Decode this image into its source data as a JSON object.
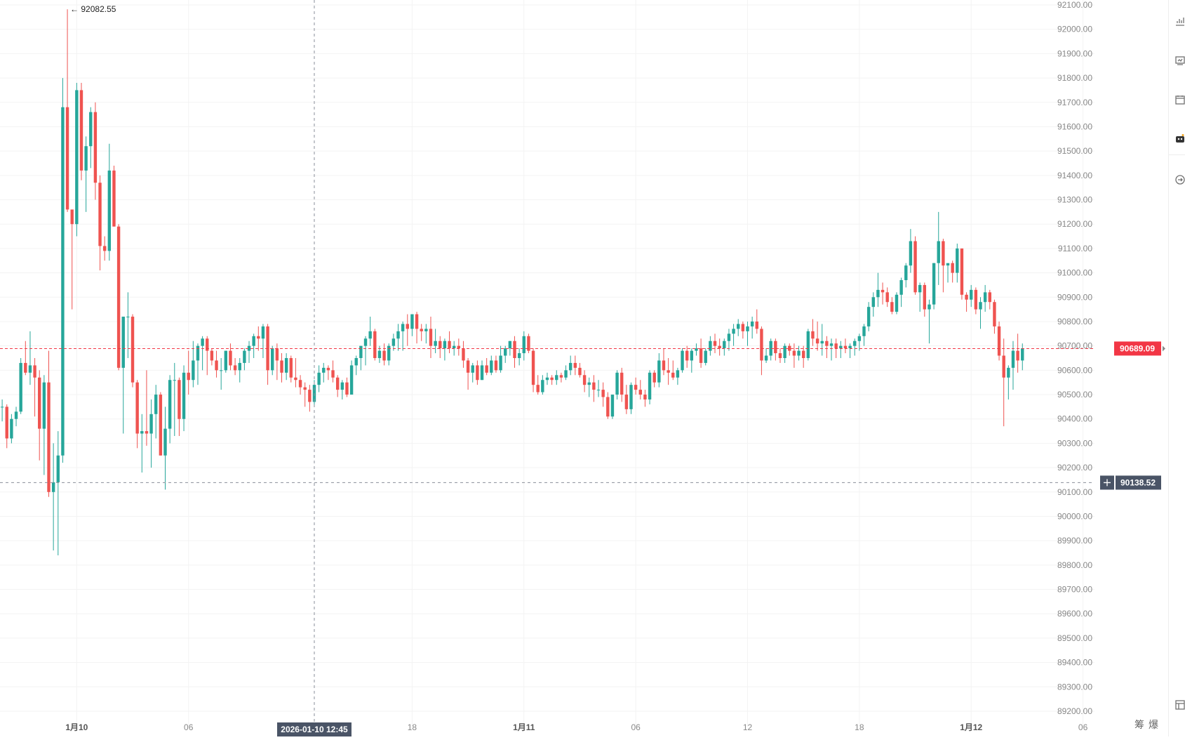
{
  "chart_data": {
    "type": "candlestick",
    "title": "",
    "ylim": [
      89150,
      92150
    ],
    "y_ticks": [
      "92100.00",
      "92000.00",
      "91900.00",
      "91800.00",
      "91700.00",
      "91600.00",
      "91500.00",
      "91400.00",
      "91300.00",
      "91200.00",
      "91100.00",
      "91000.00",
      "90900.00",
      "90800.00",
      "90700.00",
      "90600.00",
      "90500.00",
      "90400.00",
      "90300.00",
      "90200.00",
      "90100.00",
      "90000.00",
      "89900.00",
      "89800.00",
      "89700.00",
      "89600.00",
      "89500.00",
      "89400.00",
      "89300.00",
      "89200.00"
    ],
    "x_ticks": [
      {
        "label": "1月10",
        "slot": 16,
        "bold": true
      },
      {
        "label": "06",
        "slot": 40,
        "bold": false
      },
      {
        "label": "18",
        "slot": 88,
        "bold": false
      },
      {
        "label": "1月11",
        "slot": 112,
        "bold": true
      },
      {
        "label": "06",
        "slot": 136,
        "bold": false
      },
      {
        "label": "12",
        "slot": 160,
        "bold": false
      },
      {
        "label": "18",
        "slot": 184,
        "bold": false
      },
      {
        "label": "1月12",
        "slot": 208,
        "bold": true
      },
      {
        "label": "06",
        "slot": 232,
        "bold": false
      }
    ],
    "crosshair": {
      "slot": 67,
      "time_label": "2026-01-10 12:45",
      "price": 90138.52,
      "price_label": "90138.52"
    },
    "last_price": {
      "value": 90689.09,
      "label": "90689.09"
    },
    "max_marker": {
      "slot": 14,
      "value": 92082.55,
      "label": "← 92082.55"
    },
    "colors": {
      "up": "#26a69a",
      "down": "#ef5350",
      "last_price_bg": "#f23645",
      "crosshair_label_bg": "#4a5466",
      "grid": "#f3f3f3"
    },
    "candles": [
      [
        90450,
        90480,
        90390,
        90450
      ],
      [
        90450,
        90460,
        90280,
        90320
      ],
      [
        90320,
        90420,
        90300,
        90400
      ],
      [
        90400,
        90450,
        90370,
        90430
      ],
      [
        90430,
        90650,
        90420,
        90630
      ],
      [
        90630,
        90720,
        90580,
        90590
      ],
      [
        90590,
        90760,
        90540,
        90620
      ],
      [
        90620,
        90650,
        90410,
        90570
      ],
      [
        90570,
        90600,
        90230,
        90360
      ],
      [
        90360,
        90580,
        90170,
        90550
      ],
      [
        90550,
        90680,
        90080,
        90100
      ],
      [
        90100,
        90300,
        89860,
        90140
      ],
      [
        90140,
        90350,
        89840,
        90250
      ],
      [
        90250,
        91800,
        90220,
        91680
      ],
      [
        91680,
        92082,
        91250,
        91260
      ],
      [
        91260,
        91240,
        90850,
        91200
      ],
      [
        91200,
        91780,
        91150,
        91750
      ],
      [
        91750,
        91780,
        91380,
        91420
      ],
      [
        91420,
        91560,
        91250,
        91520
      ],
      [
        91520,
        91680,
        91430,
        91660
      ],
      [
        91660,
        91700,
        91300,
        91370
      ],
      [
        91370,
        91400,
        91010,
        91110
      ],
      [
        91110,
        91150,
        91050,
        91090
      ],
      [
        91090,
        91530,
        91050,
        91420
      ],
      [
        91420,
        91440,
        91190,
        91190
      ],
      [
        91190,
        91200,
        90600,
        90610
      ],
      [
        90610,
        90820,
        90340,
        90820
      ],
      [
        90820,
        90920,
        90650,
        90820
      ],
      [
        90820,
        90830,
        90530,
        90550
      ],
      [
        90550,
        90560,
        90280,
        90340
      ],
      [
        90340,
        90420,
        90180,
        90350
      ],
      [
        90350,
        90600,
        90290,
        90340
      ],
      [
        90340,
        90480,
        90200,
        90420
      ],
      [
        90420,
        90540,
        90320,
        90500
      ],
      [
        90500,
        90510,
        90250,
        90250
      ],
      [
        90250,
        90450,
        90110,
        90360
      ],
      [
        90360,
        90580,
        90300,
        90560
      ],
      [
        90560,
        90630,
        90330,
        90560
      ],
      [
        90560,
        90570,
        90330,
        90400
      ],
      [
        90400,
        90620,
        90350,
        90590
      ],
      [
        90590,
        90680,
        90500,
        90560
      ],
      [
        90560,
        90720,
        90530,
        90640
      ],
      [
        90640,
        90710,
        90540,
        90700
      ],
      [
        90700,
        90740,
        90600,
        90730
      ],
      [
        90730,
        90740,
        90580,
        90680
      ],
      [
        90680,
        90690,
        90620,
        90640
      ],
      [
        90640,
        90680,
        90570,
        90600
      ],
      [
        90600,
        90650,
        90520,
        90600
      ],
      [
        90600,
        90680,
        90590,
        90680
      ],
      [
        90680,
        90710,
        90600,
        90620
      ],
      [
        90620,
        90650,
        90580,
        90600
      ],
      [
        90600,
        90650,
        90550,
        90630
      ],
      [
        90630,
        90690,
        90600,
        90680
      ],
      [
        90680,
        90720,
        90630,
        90700
      ],
      [
        90700,
        90750,
        90650,
        90740
      ],
      [
        90740,
        90780,
        90680,
        90730
      ],
      [
        90730,
        90790,
        90650,
        90780
      ],
      [
        90780,
        90790,
        90540,
        90600
      ],
      [
        90600,
        90700,
        90580,
        90690
      ],
      [
        90690,
        90710,
        90560,
        90640
      ],
      [
        90640,
        90670,
        90550,
        90590
      ],
      [
        90590,
        90670,
        90560,
        90650
      ],
      [
        90650,
        90660,
        90550,
        90570
      ],
      [
        90570,
        90650,
        90530,
        90560
      ],
      [
        90560,
        90580,
        90500,
        90530
      ],
      [
        90530,
        90550,
        90450,
        90520
      ],
      [
        90520,
        90540,
        90430,
        90470
      ],
      [
        90470,
        90560,
        90450,
        90540
      ],
      [
        90540,
        90620,
        90510,
        90590
      ],
      [
        90590,
        90630,
        90550,
        90610
      ],
      [
        90610,
        90620,
        90560,
        90600
      ],
      [
        90600,
        90640,
        90550,
        90570
      ],
      [
        90570,
        90580,
        90490,
        90520
      ],
      [
        90520,
        90560,
        90480,
        90550
      ],
      [
        90550,
        90570,
        90490,
        90500
      ],
      [
        90500,
        90640,
        90500,
        90620
      ],
      [
        90620,
        90660,
        90580,
        90650
      ],
      [
        90650,
        90700,
        90600,
        90700
      ],
      [
        90700,
        90740,
        90620,
        90730
      ],
      [
        90730,
        90820,
        90700,
        90760
      ],
      [
        90760,
        90770,
        90640,
        90650
      ],
      [
        90650,
        90700,
        90630,
        90680
      ],
      [
        90680,
        90710,
        90620,
        90640
      ],
      [
        90640,
        90710,
        90620,
        90700
      ],
      [
        90700,
        90750,
        90680,
        90730
      ],
      [
        90730,
        90790,
        90680,
        90760
      ],
      [
        90760,
        90800,
        90680,
        90790
      ],
      [
        90790,
        90830,
        90700,
        90770
      ],
      [
        90770,
        90820,
        90740,
        90830
      ],
      [
        90830,
        90840,
        90710,
        90770
      ],
      [
        90770,
        90790,
        90720,
        90760
      ],
      [
        90760,
        90790,
        90710,
        90770
      ],
      [
        90770,
        90820,
        90650,
        90700
      ],
      [
        90700,
        90770,
        90670,
        90720
      ],
      [
        90720,
        90740,
        90650,
        90690
      ],
      [
        90690,
        90730,
        90640,
        90720
      ],
      [
        90720,
        90760,
        90670,
        90690
      ],
      [
        90690,
        90720,
        90660,
        90700
      ],
      [
        90700,
        90730,
        90660,
        90690
      ],
      [
        90690,
        90720,
        90610,
        90640
      ],
      [
        90640,
        90650,
        90520,
        90590
      ],
      [
        90590,
        90630,
        90550,
        90620
      ],
      [
        90620,
        90640,
        90540,
        90560
      ],
      [
        90560,
        90640,
        90560,
        90620
      ],
      [
        90620,
        90650,
        90580,
        90590
      ],
      [
        90590,
        90660,
        90580,
        90640
      ],
      [
        90640,
        90660,
        90590,
        90600
      ],
      [
        90600,
        90700,
        90590,
        90660
      ],
      [
        90660,
        90700,
        90630,
        90690
      ],
      [
        90690,
        90720,
        90660,
        90720
      ],
      [
        90720,
        90740,
        90610,
        90650
      ],
      [
        90650,
        90690,
        90620,
        90670
      ],
      [
        90670,
        90760,
        90640,
        90740
      ],
      [
        90740,
        90750,
        90670,
        90680
      ],
      [
        90680,
        90690,
        90510,
        90540
      ],
      [
        90540,
        90580,
        90500,
        90510
      ],
      [
        90510,
        90580,
        90500,
        90560
      ],
      [
        90560,
        90590,
        90540,
        90570
      ],
      [
        90570,
        90580,
        90540,
        90560
      ],
      [
        90560,
        90600,
        90540,
        90580
      ],
      [
        90580,
        90590,
        90550,
        90570
      ],
      [
        90570,
        90620,
        90560,
        90600
      ],
      [
        90600,
        90660,
        90580,
        90630
      ],
      [
        90630,
        90660,
        90580,
        90610
      ],
      [
        90610,
        90630,
        90570,
        90580
      ],
      [
        90580,
        90600,
        90510,
        90540
      ],
      [
        90540,
        90570,
        90490,
        90550
      ],
      [
        90550,
        90580,
        90470,
        90520
      ],
      [
        90520,
        90560,
        90490,
        90520
      ],
      [
        90520,
        90550,
        90450,
        90490
      ],
      [
        90490,
        90510,
        90400,
        90410
      ],
      [
        90410,
        90500,
        90400,
        90500
      ],
      [
        90500,
        90600,
        90480,
        90590
      ],
      [
        90590,
        90610,
        90470,
        90500
      ],
      [
        90500,
        90540,
        90420,
        90440
      ],
      [
        90440,
        90550,
        90420,
        90540
      ],
      [
        90540,
        90570,
        90500,
        90520
      ],
      [
        90520,
        90560,
        90480,
        90500
      ],
      [
        90500,
        90520,
        90450,
        90480
      ],
      [
        90480,
        90600,
        90460,
        90590
      ],
      [
        90590,
        90600,
        90530,
        90550
      ],
      [
        90550,
        90670,
        90530,
        90640
      ],
      [
        90640,
        90690,
        90580,
        90600
      ],
      [
        90600,
        90650,
        90540,
        90590
      ],
      [
        90590,
        90640,
        90560,
        90570
      ],
      [
        90570,
        90610,
        90540,
        90600
      ],
      [
        90600,
        90690,
        90590,
        90680
      ],
      [
        90680,
        90700,
        90610,
        90640
      ],
      [
        90640,
        90690,
        90590,
        90680
      ],
      [
        90680,
        90710,
        90660,
        90690
      ],
      [
        90690,
        90730,
        90610,
        90630
      ],
      [
        90630,
        90690,
        90620,
        90680
      ],
      [
        90680,
        90740,
        90660,
        90720
      ],
      [
        90720,
        90750,
        90670,
        90700
      ],
      [
        90700,
        90730,
        90660,
        90690
      ],
      [
        90690,
        90730,
        90660,
        90720
      ],
      [
        90720,
        90770,
        90680,
        90750
      ],
      [
        90750,
        90790,
        90700,
        90770
      ],
      [
        90770,
        90810,
        90740,
        90790
      ],
      [
        90790,
        90800,
        90730,
        90760
      ],
      [
        90760,
        90800,
        90700,
        90780
      ],
      [
        90780,
        90820,
        90730,
        90800
      ],
      [
        90800,
        90850,
        90750,
        90770
      ],
      [
        90770,
        90780,
        90580,
        90640
      ],
      [
        90640,
        90690,
        90630,
        90660
      ],
      [
        90660,
        90730,
        90640,
        90720
      ],
      [
        90720,
        90730,
        90640,
        90670
      ],
      [
        90670,
        90690,
        90630,
        90650
      ],
      [
        90650,
        90710,
        90630,
        90700
      ],
      [
        90700,
        90710,
        90660,
        90680
      ],
      [
        90680,
        90710,
        90610,
        90660
      ],
      [
        90660,
        90700,
        90640,
        90680
      ],
      [
        90680,
        90700,
        90610,
        90650
      ],
      [
        90650,
        90770,
        90640,
        90760
      ],
      [
        90760,
        90810,
        90700,
        90730
      ],
      [
        90730,
        90800,
        90680,
        90710
      ],
      [
        90710,
        90790,
        90660,
        90720
      ],
      [
        90720,
        90740,
        90650,
        90700
      ],
      [
        90700,
        90730,
        90640,
        90710
      ],
      [
        90710,
        90730,
        90650,
        90690
      ],
      [
        90690,
        90720,
        90650,
        90700
      ],
      [
        90700,
        90730,
        90670,
        90690
      ],
      [
        90690,
        90710,
        90650,
        90700
      ],
      [
        90700,
        90730,
        90660,
        90720
      ],
      [
        90720,
        90750,
        90680,
        90740
      ],
      [
        90740,
        90790,
        90700,
        90780
      ],
      [
        90780,
        90880,
        90760,
        90860
      ],
      [
        90860,
        90920,
        90820,
        90900
      ],
      [
        90900,
        91000,
        90860,
        90930
      ],
      [
        90930,
        90960,
        90870,
        90920
      ],
      [
        90920,
        90940,
        90860,
        90880
      ],
      [
        90880,
        90900,
        90830,
        90840
      ],
      [
        90840,
        90920,
        90830,
        90910
      ],
      [
        90910,
        90980,
        90860,
        90970
      ],
      [
        90970,
        91040,
        90940,
        91030
      ],
      [
        91030,
        91180,
        91000,
        91130
      ],
      [
        91130,
        91150,
        90910,
        90920
      ],
      [
        90920,
        90960,
        90840,
        90950
      ],
      [
        90950,
        90960,
        90820,
        90850
      ],
      [
        90850,
        90890,
        90710,
        90870
      ],
      [
        90870,
        91040,
        90850,
        91040
      ],
      [
        91040,
        91250,
        90950,
        91130
      ],
      [
        91130,
        91140,
        90920,
        91030
      ],
      [
        91030,
        91030,
        90960,
        91040
      ],
      [
        91040,
        91050,
        90960,
        91000
      ],
      [
        91000,
        91120,
        90960,
        91100
      ],
      [
        91100,
        91080,
        90890,
        90910
      ],
      [
        90910,
        90920,
        90840,
        90890
      ],
      [
        90890,
        90950,
        90860,
        90930
      ],
      [
        90930,
        90940,
        90830,
        90850
      ],
      [
        90850,
        90900,
        90770,
        90880
      ],
      [
        90880,
        90950,
        90840,
        90920
      ],
      [
        90920,
        90930,
        90850,
        90880
      ],
      [
        90880,
        90890,
        90750,
        90780
      ],
      [
        90780,
        90800,
        90640,
        90660
      ],
      [
        90660,
        90730,
        90370,
        90570
      ],
      [
        90570,
        90620,
        90480,
        90610
      ],
      [
        90610,
        90720,
        90520,
        90680
      ],
      [
        90680,
        90750,
        90590,
        90640
      ],
      [
        90640,
        90710,
        90600,
        90690
      ]
    ]
  }
}
